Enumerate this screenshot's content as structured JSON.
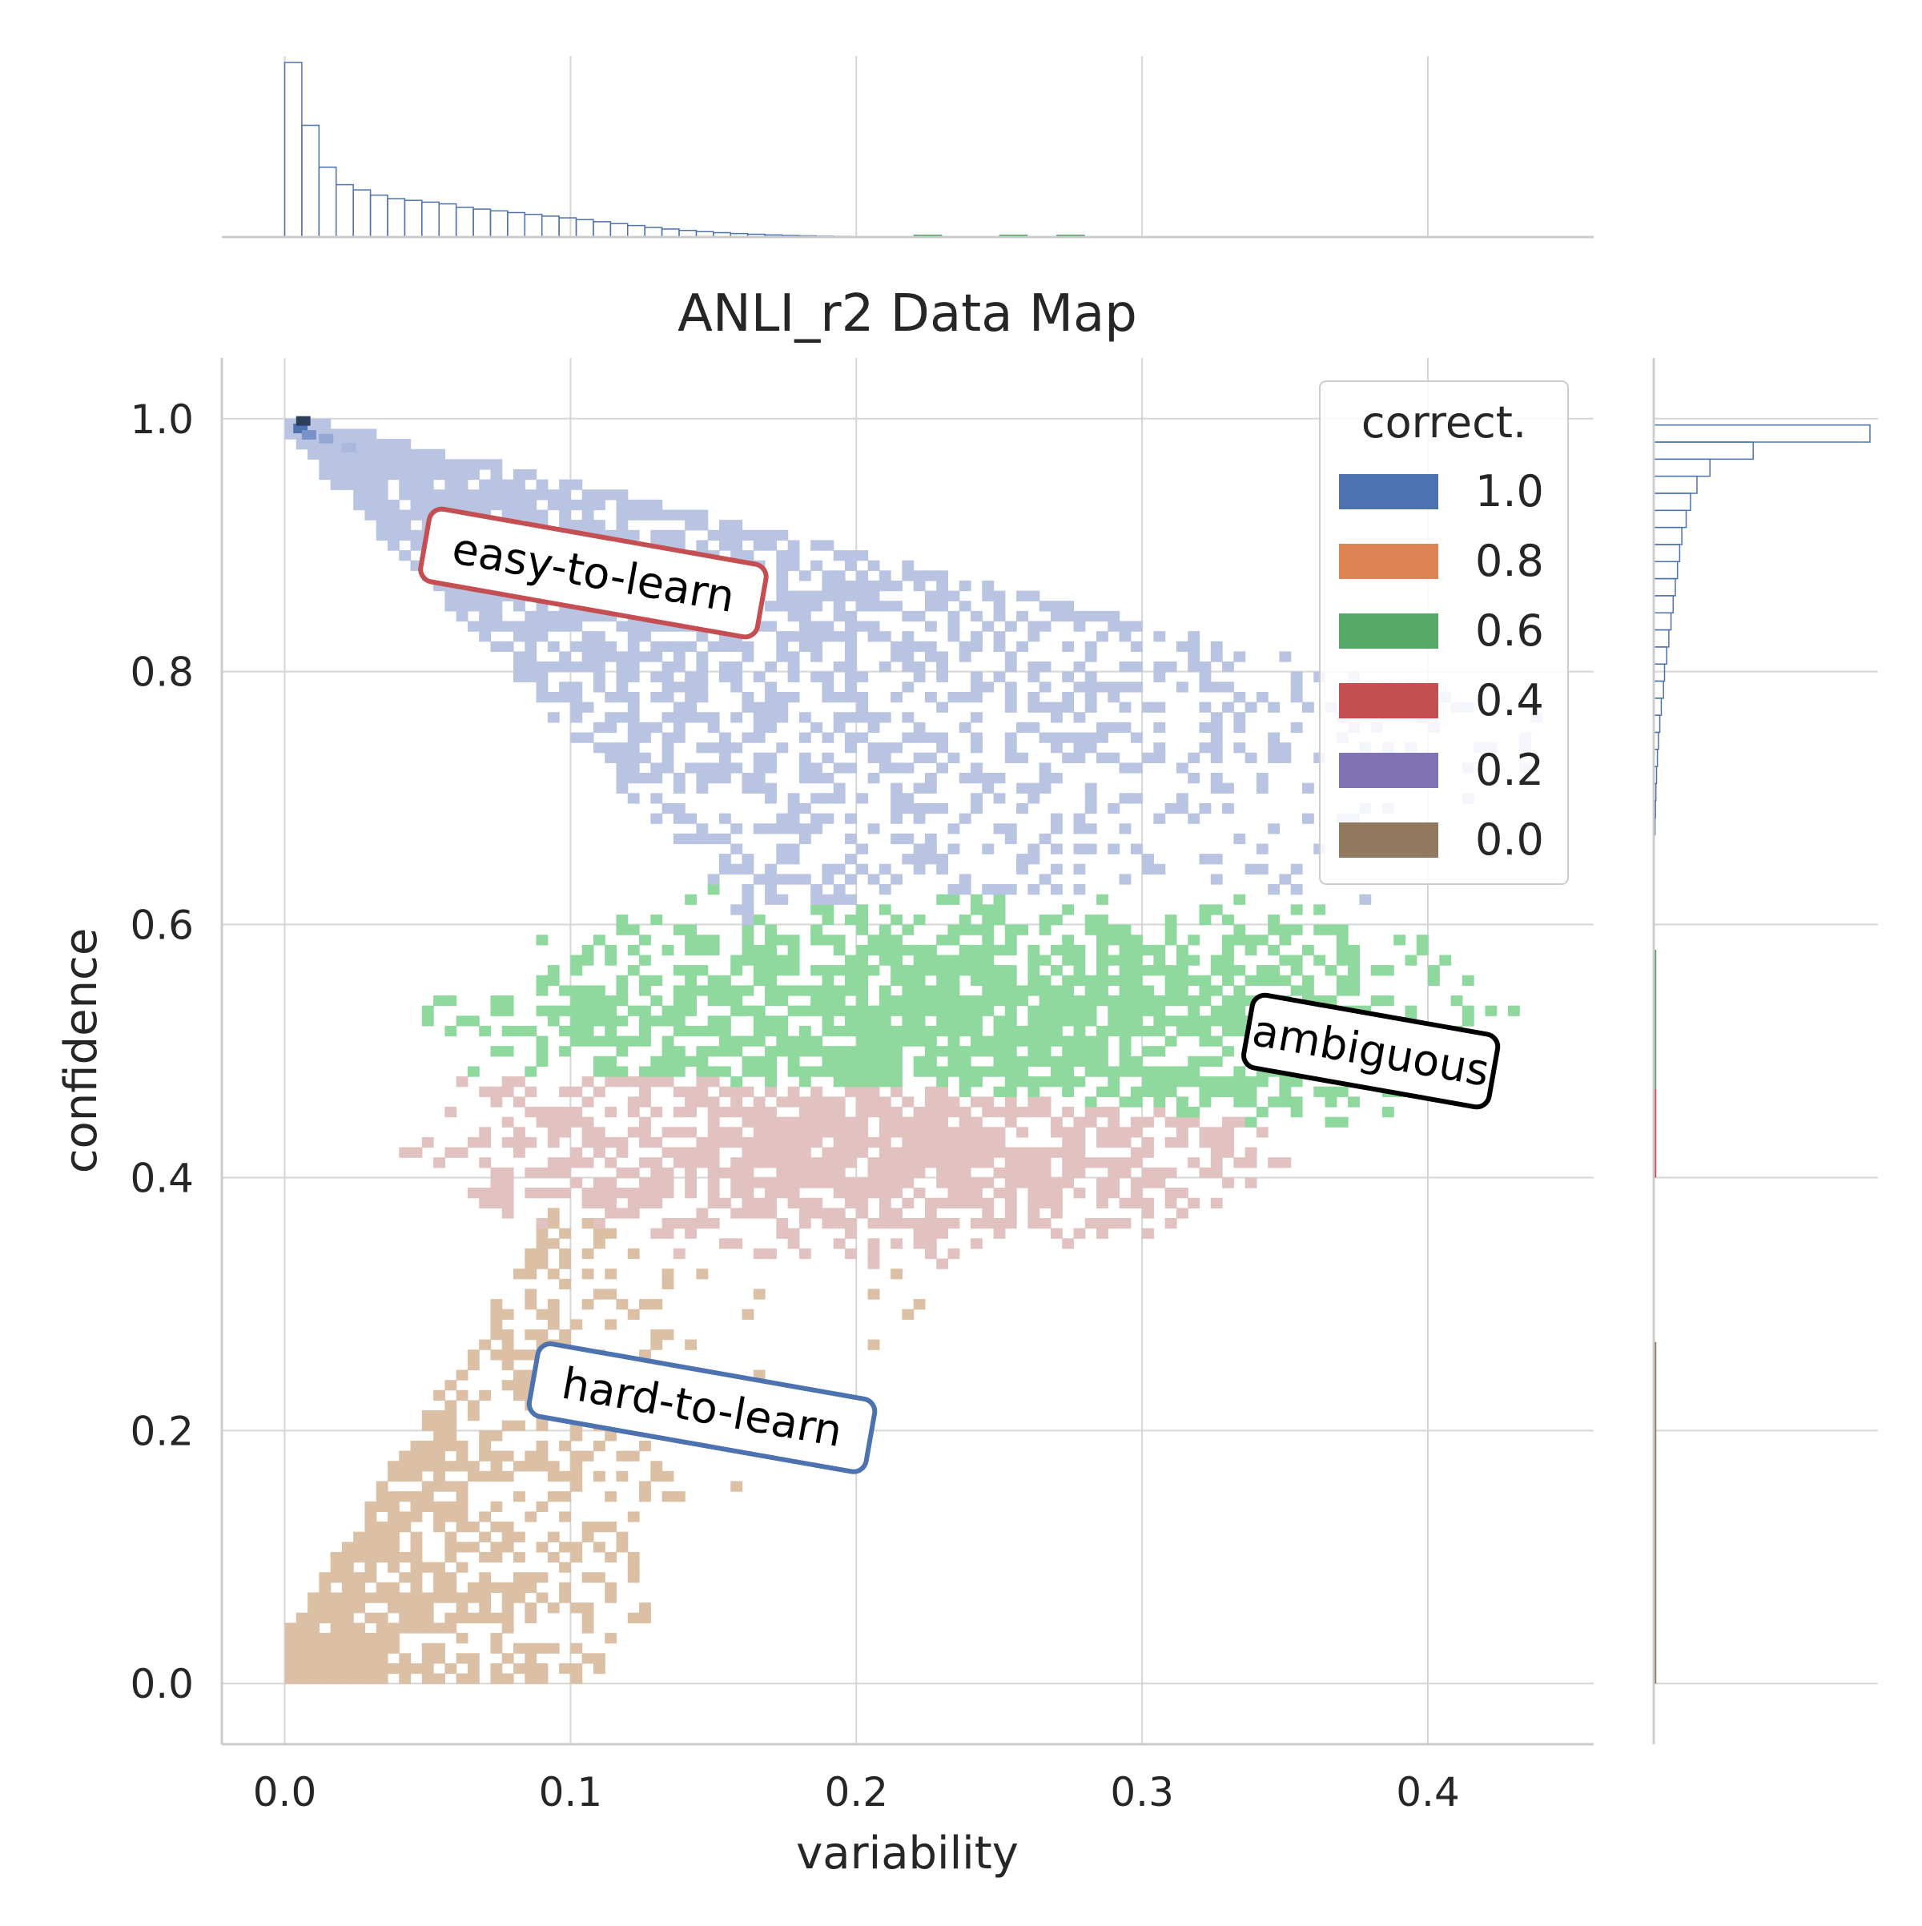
{
  "chart_data": {
    "type": "heatmap",
    "title": "ANLI_r2 Data Map",
    "xlabel": "variability",
    "ylabel": "confidence",
    "xlim": [
      -0.022,
      0.458
    ],
    "ylim": [
      -0.048,
      1.048
    ],
    "x_ticks": [
      "0.0",
      "0.1",
      "0.2",
      "0.3",
      "0.4"
    ],
    "x_tick_values": [
      0.0,
      0.1,
      0.2,
      0.3,
      0.4
    ],
    "y_ticks": [
      "0.0",
      "0.2",
      "0.4",
      "0.6",
      "0.8",
      "1.0"
    ],
    "y_tick_values": [
      0.0,
      0.2,
      0.4,
      0.6,
      0.8,
      1.0
    ],
    "grid": true,
    "legend": {
      "title": "correct.",
      "placement": "top-right",
      "entries": [
        {
          "label": "1.0",
          "color": "#4c72b0"
        },
        {
          "label": "0.8",
          "color": "#dd8452"
        },
        {
          "label": "0.6",
          "color": "#55a868"
        },
        {
          "label": "0.4",
          "color": "#c44e52"
        },
        {
          "label": "0.2",
          "color": "#8172b3"
        },
        {
          "label": "0.0",
          "color": "#937860"
        }
      ]
    },
    "clusters": [
      {
        "correctness": "1.0",
        "shape": "wedge",
        "x_range": [
          0.0,
          0.25
        ],
        "y_range": [
          0.5,
          1.0
        ],
        "cell_color": "#b8c4e2",
        "peak_color": "#4c72b0"
      },
      {
        "correctness": "0.6",
        "shape": "cloud",
        "center": [
          0.24,
          0.52
        ],
        "x_spread": 0.2,
        "y_spread": 0.12,
        "cell_color": "#8fd99f"
      },
      {
        "correctness": "0.4",
        "shape": "cloud",
        "center": [
          0.2,
          0.42
        ],
        "x_spread": 0.17,
        "y_spread": 0.1,
        "cell_color": "#e2c2c0"
      },
      {
        "correctness": "0.0",
        "shape": "wedge",
        "x_range": [
          0.0,
          0.13
        ],
        "y_range": [
          0.0,
          0.36
        ],
        "cell_color": "#dcc0a6"
      }
    ],
    "annotations": [
      {
        "text": "easy-to-learn",
        "x": 0.108,
        "y": 0.878,
        "rotation_deg": 10,
        "border_color": "#c44e52"
      },
      {
        "text": "ambiguous",
        "x": 0.38,
        "y": 0.5,
        "rotation_deg": 10,
        "border_color": "#000000"
      },
      {
        "text": "hard-to-learn",
        "x": 0.146,
        "y": 0.218,
        "rotation_deg": 10,
        "border_color": "#4c72b0"
      }
    ],
    "marginal_x": {
      "type": "histogram",
      "variable": "variability",
      "bin_width": 0.006,
      "relative_heights": [
        1.0,
        0.64,
        0.4,
        0.3,
        0.27,
        0.24,
        0.22,
        0.21,
        0.2,
        0.19,
        0.17,
        0.16,
        0.15,
        0.14,
        0.13,
        0.12,
        0.11,
        0.1,
        0.088,
        0.077,
        0.066,
        0.055,
        0.046,
        0.038,
        0.031,
        0.025,
        0.02,
        0.016,
        0.012,
        0.009,
        0.007,
        0.005,
        0.004,
        0.003
      ],
      "color": "#4c72b0"
    },
    "marginal_y": {
      "type": "histogram",
      "variable": "confidence",
      "relative_widths_top_down": [
        1.0,
        0.46,
        0.26,
        0.2,
        0.17,
        0.15,
        0.13,
        0.12,
        0.11,
        0.1,
        0.09,
        0.08,
        0.07,
        0.06,
        0.05,
        0.045,
        0.035,
        0.028,
        0.022,
        0.017,
        0.013,
        0.01,
        0.008,
        0.006
      ],
      "bin_top": 0.995,
      "bin_width": 0.0135,
      "color": "#4c72b0"
    }
  }
}
